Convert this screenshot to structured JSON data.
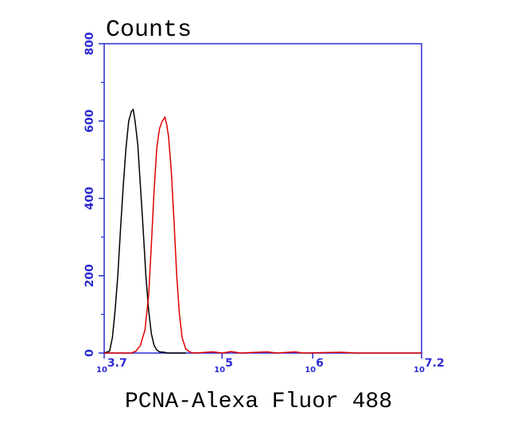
{
  "chart_data": {
    "type": "line",
    "title": "Counts",
    "x_label": "PCNA-Alexa Fluor 488",
    "x_tick_base": "10",
    "xlim": [
      3.7,
      7.2
    ],
    "xticks": [
      {
        "value": 3.7,
        "label": "3.7"
      },
      {
        "value": 5,
        "label": "5"
      },
      {
        "value": 6,
        "label": "6"
      },
      {
        "value": 7.2,
        "label": "7.2"
      }
    ],
    "ylim": [
      0,
      800
    ],
    "yticks": [
      0,
      200,
      400,
      600,
      800
    ],
    "yminor": [
      100,
      300,
      500,
      700
    ],
    "axis_color": "#2a2ad0",
    "series": [
      {
        "color": "#000000",
        "x": [
          3.7,
          3.76,
          3.79,
          3.82,
          3.85,
          3.88,
          3.91,
          3.94,
          3.97,
          4.0,
          4.02,
          4.04,
          4.07,
          4.1,
          4.13,
          4.16,
          4.19,
          4.22,
          4.25,
          4.28,
          4.31,
          4.36,
          4.4,
          4.6
        ],
        "values": [
          0,
          5,
          40,
          110,
          200,
          320,
          430,
          530,
          600,
          625,
          630,
          600,
          540,
          430,
          320,
          200,
          110,
          50,
          20,
          8,
          3,
          2,
          0,
          0
        ]
      },
      {
        "color": "#e00000",
        "x": [
          3.7,
          4.0,
          4.05,
          4.1,
          4.15,
          4.19,
          4.22,
          4.25,
          4.28,
          4.31,
          4.34,
          4.37,
          4.39,
          4.41,
          4.44,
          4.47,
          4.5,
          4.53,
          4.56,
          4.6,
          4.65,
          4.7,
          4.9,
          5.0,
          5.1,
          5.2,
          5.5,
          5.6,
          5.8,
          5.9,
          6.3,
          6.5,
          7.2
        ],
        "values": [
          0,
          0,
          5,
          20,
          60,
          150,
          280,
          420,
          530,
          580,
          600,
          610,
          590,
          560,
          470,
          340,
          200,
          100,
          40,
          10,
          2,
          0,
          3,
          0,
          4,
          0,
          3,
          0,
          3,
          0,
          2,
          0,
          0
        ]
      }
    ]
  }
}
